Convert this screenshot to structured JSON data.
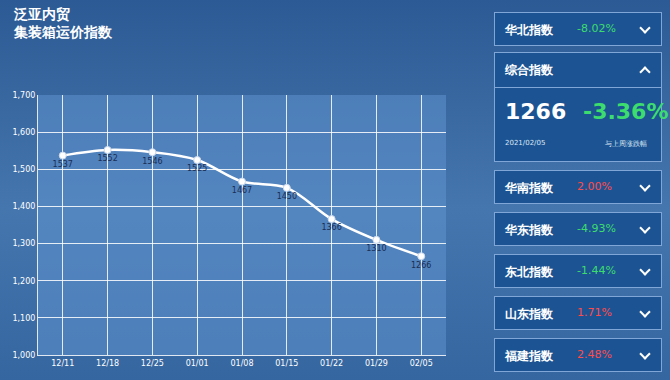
{
  "chart_data": {
    "type": "line",
    "title": "泛亚内贸\n集装箱运价指数",
    "categories": [
      "12/11",
      "12/18",
      "12/25",
      "01/01",
      "01/08",
      "01/15",
      "01/22",
      "01/29",
      "02/05"
    ],
    "values": [
      1537,
      1552,
      1546,
      1525,
      1467,
      1450,
      1366,
      1310,
      1266
    ],
    "color": "#ffffff",
    "marker": "circle",
    "line_style": "solid",
    "ylim": [
      1000,
      1700
    ],
    "yticks": [
      {
        "value": 1000,
        "label": "1,000"
      },
      {
        "value": 1100,
        "label": "1,100"
      },
      {
        "value": 1200,
        "label": "1,200"
      },
      {
        "value": 1300,
        "label": "1,300"
      },
      {
        "value": 1400,
        "label": "1,400"
      },
      {
        "value": 1500,
        "label": "1,500"
      },
      {
        "value": 1600,
        "label": "1,600"
      },
      {
        "value": 1700,
        "label": "1,700"
      }
    ],
    "grid": true,
    "data_labels": true
  },
  "panel": {
    "items": [
      {
        "name": "华北指数",
        "value": -8.02,
        "label": "-8.02%"
      },
      {
        "name": "综合指数",
        "index": 1266,
        "value": -3.36,
        "label": "-3.36%",
        "date": "2021/02/05",
        "note": "与上周涨跌幅"
      },
      {
        "name": "华南指数",
        "value": 2.0,
        "label": "2.00%"
      },
      {
        "name": "华东指数",
        "value": -4.93,
        "label": "-4.93%"
      },
      {
        "name": "东北指数",
        "value": -1.44,
        "label": "-1.44%"
      },
      {
        "name": "山东指数",
        "value": 1.71,
        "label": "1.71%"
      },
      {
        "name": "福建指数",
        "value": 2.48,
        "label": "2.48%"
      }
    ]
  }
}
